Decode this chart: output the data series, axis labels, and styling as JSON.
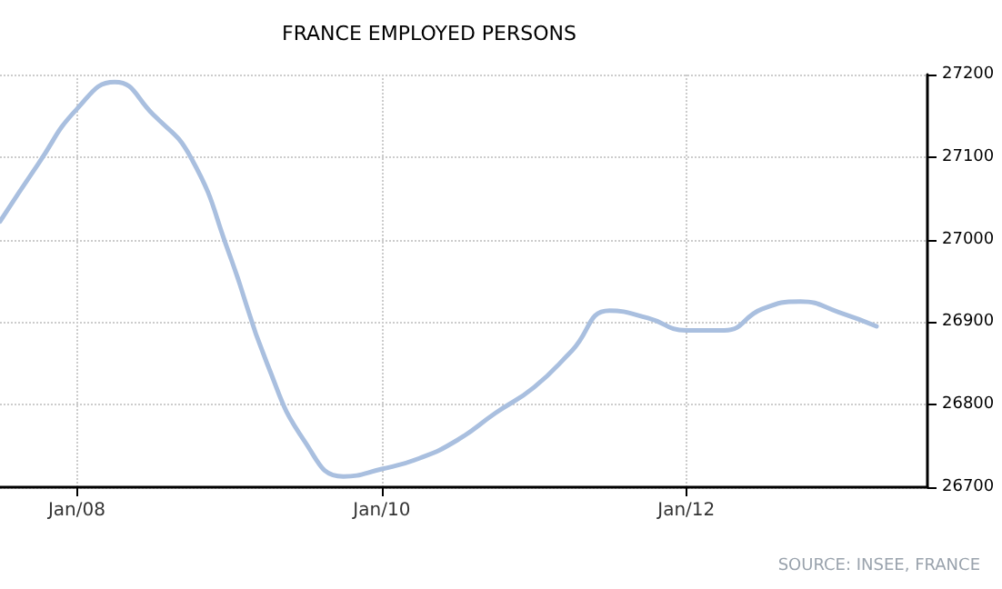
{
  "chart_data": {
    "type": "line",
    "title": "FRANCE EMPLOYED PERSONS",
    "x": [
      "2007-07",
      "2007-10",
      "2008-01",
      "2008-04",
      "2008-07",
      "2008-10",
      "2009-01",
      "2009-04",
      "2009-07",
      "2009-10",
      "2010-01",
      "2010-04",
      "2010-07",
      "2010-10",
      "2011-01",
      "2011-04",
      "2011-07",
      "2011-10",
      "2012-01",
      "2012-04",
      "2012-07",
      "2012-10",
      "2013-01",
      "2013-04"
    ],
    "series": [
      {
        "color": "#a9bfdf",
        "values": [
          27022,
          27092,
          27158,
          27191,
          27152,
          27099,
          26982,
          26850,
          26755,
          26713,
          26722,
          26735,
          26757,
          26790,
          26821,
          26865,
          26914,
          26905,
          26890,
          26890,
          26916,
          26925,
          26912,
          26895
        ]
      }
    ],
    "xlim": [
      "2007-07",
      "2013-08"
    ],
    "xticks": [
      {
        "value": "2008-01",
        "label": "Jan/08"
      },
      {
        "value": "2010-01",
        "label": "Jan/10"
      },
      {
        "value": "2012-01",
        "label": "Jan/12"
      }
    ],
    "ylim": [
      26700,
      27200
    ],
    "yticks": [
      26700,
      26800,
      26900,
      27000,
      27100,
      27200
    ],
    "grid": true,
    "marker": "none",
    "line_style": "solid",
    "annotations": [
      "SOURCE: INSEE, FRANCE"
    ]
  }
}
